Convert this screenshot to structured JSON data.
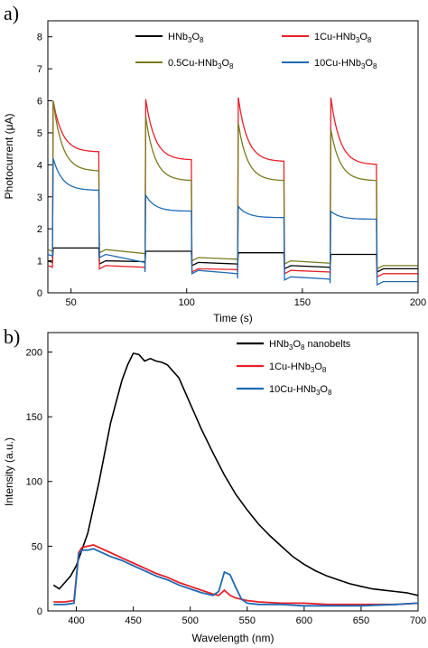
{
  "chart_data": [
    {
      "panel_label": "a)",
      "type": "line",
      "xlabel": "Time (s)",
      "ylabel": "Photocurrent (μA)",
      "xlim": [
        40,
        200
      ],
      "ylim": [
        0,
        8.5
      ],
      "x_ticks": [
        "50",
        "100",
        "150",
        "200"
      ],
      "y_ticks": [
        "0",
        "1",
        "2",
        "3",
        "4",
        "5",
        "6",
        "7",
        "8"
      ],
      "legend": {
        "position": "top",
        "columns": 2
      },
      "series": [
        {
          "name": "HNb₃O₈",
          "label_main": "HNb",
          "label_sub1": "3",
          "label_mid": "O",
          "label_sub2": "8",
          "color": "#000000",
          "on_start": 1.35,
          "on_end": 1.42,
          "off_level": 1.0,
          "off_dip": 0.95
        },
        {
          "name": "1Cu-HNb₃O₈",
          "label_main": "1Cu-HNb",
          "label_sub1": "3",
          "label_mid": "O",
          "label_sub2": "8",
          "color": "#e8202a",
          "on_start": 6.0,
          "on_end": 4.1,
          "off_level": 0.85,
          "off_dip": 0.8
        },
        {
          "name": "0.5Cu-HNb₃O₈",
          "label_main": "0.5Cu-HNb",
          "label_sub1": "3",
          "label_mid": "O",
          "label_sub2": "8",
          "color": "#7a7a1e",
          "on_start": 5.9,
          "on_end": 3.6,
          "off_level": 1.3,
          "off_dip": 0.9
        },
        {
          "name": "10Cu-HNb₃O₈",
          "label_main": "10Cu-HNb",
          "label_sub1": "3",
          "label_mid": "O",
          "label_sub2": "8",
          "color": "#1f6ab3",
          "on_start": 4.2,
          "on_end": 3.2,
          "off_level": 1.2,
          "off_dip": 0.6
        }
      ],
      "on_cycles": [
        [
          42,
          62
        ],
        [
          82,
          102
        ],
        [
          122,
          142
        ],
        [
          162,
          182
        ]
      ],
      "cycle_on_start": {
        "HNb₃O₈": [
          1.4,
          1.3,
          1.25,
          1.2
        ],
        "1Cu-HNb₃O₈": [
          6.0,
          6.05,
          6.1,
          6.1
        ],
        "0.5Cu-HNb₃O₈": [
          6.0,
          5.5,
          5.3,
          5.1
        ],
        "10Cu-HNb₃O₈": [
          4.2,
          3.05,
          2.7,
          2.55
        ]
      },
      "cycle_on_end": {
        "HNb₃O₈": [
          1.4,
          1.3,
          1.25,
          1.2
        ],
        "1Cu-HNb₃O₈": [
          4.4,
          4.15,
          4.1,
          4.0
        ],
        "0.5Cu-HNb₃O₈": [
          3.8,
          3.5,
          3.5,
          3.5
        ],
        "10Cu-HNb₃O₈": [
          3.2,
          2.55,
          2.35,
          2.3
        ]
      },
      "cycle_off_level": {
        "HNb₃O₈": [
          1.0,
          0.95,
          0.85,
          0.75
        ],
        "1Cu-HNb₃O₈": [
          0.85,
          0.75,
          0.7,
          0.6
        ],
        "0.5Cu-HNb₃O₈": [
          1.35,
          1.1,
          1.0,
          0.85
        ],
        "10Cu-HNb₃O₈": [
          1.2,
          0.7,
          0.5,
          0.35
        ]
      }
    },
    {
      "panel_label": "b)",
      "type": "line",
      "xlabel": "Wavelength (nm)",
      "ylabel": "Intensity (a.u.)",
      "xlim": [
        375,
        700
      ],
      "ylim": [
        0,
        215
      ],
      "x_ticks": [
        "400",
        "450",
        "500",
        "550",
        "600",
        "650",
        "700"
      ],
      "x_tick_values": [
        400,
        450,
        500,
        550,
        600,
        650,
        700
      ],
      "y_ticks": [
        "0",
        "50",
        "100",
        "150",
        "200"
      ],
      "y_tick_values": [
        0,
        50,
        100,
        150,
        200
      ],
      "legend": {
        "position": "top-right"
      },
      "series": [
        {
          "name": "HNb₃O₈ nanobelts",
          "label_main": "HNb",
          "label_sub1": "3",
          "label_mid": "O",
          "label_sub2": "8",
          "label_tail": " nanobelts",
          "color": "#000000",
          "x": [
            380,
            385,
            390,
            395,
            400,
            410,
            420,
            430,
            440,
            445,
            450,
            455,
            460,
            465,
            470,
            475,
            480,
            490,
            500,
            510,
            520,
            530,
            540,
            550,
            560,
            570,
            580,
            590,
            600,
            610,
            620,
            630,
            640,
            650,
            660,
            670,
            680,
            690,
            695,
            700
          ],
          "y": [
            20,
            17,
            22,
            27,
            35,
            60,
            100,
            145,
            178,
            190,
            199,
            198,
            193,
            195,
            193,
            192,
            190,
            180,
            160,
            140,
            122,
            105,
            90,
            78,
            67,
            58,
            50,
            42,
            36,
            31,
            27,
            24,
            21,
            19,
            17,
            16,
            15,
            14,
            13,
            12
          ]
        },
        {
          "name": "1Cu-HNb₃O₈",
          "label_main": "1Cu-HNb",
          "label_sub1": "3",
          "label_mid": "O",
          "label_sub2": "8",
          "label_tail": "",
          "color": "#e8202a",
          "x": [
            380,
            390,
            398,
            402,
            405,
            410,
            415,
            420,
            430,
            440,
            450,
            460,
            470,
            480,
            490,
            500,
            510,
            520,
            525,
            530,
            535,
            540,
            550,
            560,
            580,
            600,
            620,
            650,
            680,
            700
          ],
          "y": [
            7,
            7,
            8,
            45,
            49,
            50,
            51,
            49,
            45,
            41,
            37,
            33,
            29,
            26,
            22,
            19,
            16,
            13,
            12,
            16,
            12,
            10,
            8,
            7,
            6,
            6,
            5,
            5,
            5,
            6
          ]
        },
        {
          "name": "10Cu-HNb₃O₈",
          "label_main": "10Cu-HNb",
          "label_sub1": "3",
          "label_mid": "O",
          "label_sub2": "8",
          "label_tail": "",
          "color": "#1f6ab3",
          "x": [
            380,
            390,
            398,
            402,
            405,
            410,
            415,
            420,
            430,
            440,
            450,
            460,
            470,
            480,
            490,
            500,
            510,
            520,
            525,
            530,
            535,
            540,
            545,
            550,
            560,
            580,
            600,
            620,
            650,
            680,
            700
          ],
          "y": [
            5,
            5,
            6,
            44,
            47,
            47,
            48,
            46,
            42,
            39,
            35,
            31,
            27,
            24,
            20,
            17,
            14,
            12,
            15,
            30,
            28,
            18,
            9,
            6,
            5,
            5,
            4,
            4,
            4,
            5,
            6
          ]
        }
      ]
    }
  ]
}
